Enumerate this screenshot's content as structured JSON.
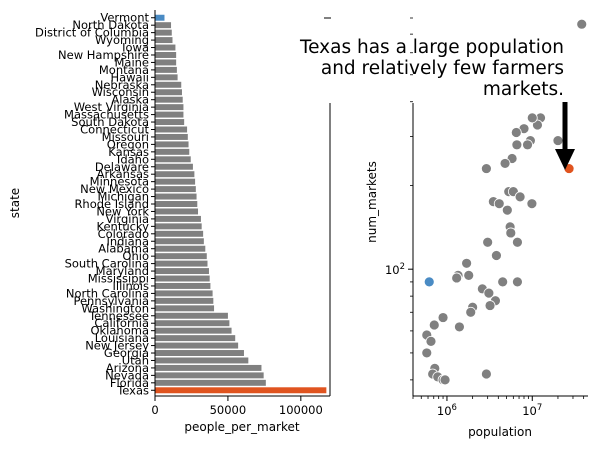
{
  "chart_data": [
    {
      "type": "bar",
      "orientation": "horizontal",
      "ylabel": "state",
      "xlabel": "people_per_market",
      "xlim": [
        0,
        120000
      ],
      "xticks": [
        0,
        50000,
        100000
      ],
      "xtick_labels": [
        "0",
        "50000",
        "100000"
      ],
      "highlight": {
        "Vermont": "#4a8bc4",
        "Texas": "#e0541f"
      },
      "default_color": "#808080",
      "categories": [
        "Vermont",
        "North Dakota",
        "District of Columbia",
        "Wyoming",
        "Iowa",
        "New Hampshire",
        "Maine",
        "Montana",
        "Hawaii",
        "Nebraska",
        "Wisconsin",
        "Alaska",
        "West Virginia",
        "Massachusetts",
        "South Dakota",
        "Connecticut",
        "Missouri",
        "Oregon",
        "Kansas",
        "Idaho",
        "Delaware",
        "Arkansas",
        "Minnesota",
        "New Mexico",
        "Michigan",
        "Rhode Island",
        "New York",
        "Virginia",
        "Kentucky",
        "Colorado",
        "Indiana",
        "Alabama",
        "Ohio",
        "South Carolina",
        "Maryland",
        "Mississippi",
        "Illinois",
        "North Carolina",
        "Pennsylvania",
        "Washington",
        "Tennessee",
        "California",
        "Oklahoma",
        "Louisiana",
        "New Jersey",
        "Georgia",
        "Utah",
        "Arizona",
        "Nevada",
        "Florida",
        "Texas"
      ],
      "values": [
        6500,
        11000,
        11500,
        12000,
        14000,
        14500,
        14500,
        15000,
        15500,
        18000,
        18500,
        19000,
        19500,
        19500,
        20000,
        22000,
        22500,
        23000,
        23500,
        24500,
        26000,
        27000,
        27500,
        28000,
        28500,
        29000,
        29500,
        31500,
        32000,
        33000,
        33500,
        34500,
        35500,
        36000,
        37000,
        37500,
        38000,
        39500,
        40000,
        40500,
        50000,
        51000,
        52500,
        55000,
        57000,
        61000,
        64000,
        73000,
        74500,
        76000,
        117500
      ]
    },
    {
      "type": "scatter",
      "xlabel": "population",
      "ylabel": "num_markets",
      "xscale": "log",
      "yscale": "log",
      "xticks": [
        1000000,
        10000000
      ],
      "xtick_labels": [
        "10^6",
        "10^7"
      ],
      "yticks": [
        100
      ],
      "ytick_labels": [
        "10^2"
      ],
      "xlim": [
        400000,
        45000000
      ],
      "ylim": [
        35,
        800
      ],
      "annotation": "Texas has a large population\nand relatively few farmers\nmarkets.",
      "default_color": "#808080",
      "points": [
        {
          "x": 620000,
          "y": 90,
          "color": "#4a8bc4"
        },
        {
          "x": 27000000,
          "y": 230,
          "color": "#e0541f"
        },
        {
          "x": 38000000,
          "y": 760
        },
        {
          "x": 20000000,
          "y": 290
        },
        {
          "x": 12500000,
          "y": 350
        },
        {
          "x": 11500000,
          "y": 330
        },
        {
          "x": 10000000,
          "y": 350
        },
        {
          "x": 8000000,
          "y": 320
        },
        {
          "x": 9500000,
          "y": 290
        },
        {
          "x": 6500000,
          "y": 310
        },
        {
          "x": 6600000,
          "y": 280
        },
        {
          "x": 8800000,
          "y": 280
        },
        {
          "x": 5800000,
          "y": 250
        },
        {
          "x": 4800000,
          "y": 240
        },
        {
          "x": 2900000,
          "y": 230
        },
        {
          "x": 5300000,
          "y": 190
        },
        {
          "x": 6000000,
          "y": 190
        },
        {
          "x": 7200000,
          "y": 182
        },
        {
          "x": 3500000,
          "y": 175
        },
        {
          "x": 4100000,
          "y": 172
        },
        {
          "x": 9900000,
          "y": 172
        },
        {
          "x": 5100000,
          "y": 163
        },
        {
          "x": 5500000,
          "y": 142
        },
        {
          "x": 5600000,
          "y": 135
        },
        {
          "x": 6700000,
          "y": 125
        },
        {
          "x": 3000000,
          "y": 125
        },
        {
          "x": 3800000,
          "y": 112
        },
        {
          "x": 1700000,
          "y": 105
        },
        {
          "x": 1350000,
          "y": 95
        },
        {
          "x": 1300000,
          "y": 93
        },
        {
          "x": 1800000,
          "y": 95
        },
        {
          "x": 4500000,
          "y": 90
        },
        {
          "x": 6700000,
          "y": 90
        },
        {
          "x": 2600000,
          "y": 85
        },
        {
          "x": 3100000,
          "y": 82
        },
        {
          "x": 3700000,
          "y": 77
        },
        {
          "x": 2000000,
          "y": 73
        },
        {
          "x": 3200000,
          "y": 74
        },
        {
          "x": 1900000,
          "y": 70
        },
        {
          "x": 900000,
          "y": 67
        },
        {
          "x": 710000,
          "y": 63
        },
        {
          "x": 1400000,
          "y": 62
        },
        {
          "x": 580000,
          "y": 58
        },
        {
          "x": 650000,
          "y": 55
        },
        {
          "x": 580000,
          "y": 50
        },
        {
          "x": 720000,
          "y": 44
        },
        {
          "x": 680000,
          "y": 42
        },
        {
          "x": 780000,
          "y": 41
        },
        {
          "x": 900000,
          "y": 40
        },
        {
          "x": 950000,
          "y": 40
        },
        {
          "x": 2900000,
          "y": 42
        }
      ]
    }
  ]
}
